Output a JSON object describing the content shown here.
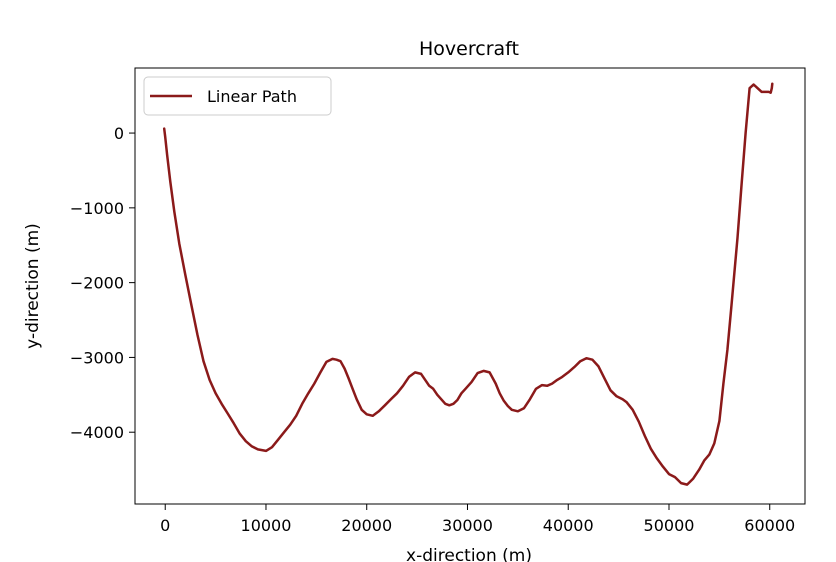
{
  "chart_data": {
    "type": "line",
    "title": "Hovercraft",
    "xlabel": "x-direction (m)",
    "ylabel": "y-direction (m)",
    "xlim": [
      -3000,
      63500
    ],
    "ylim": [
      -4960,
      870
    ],
    "grid": false,
    "legend_position": "upper-left",
    "xticks": [
      {
        "value": 0,
        "label": "0"
      },
      {
        "value": 10000,
        "label": "10000"
      },
      {
        "value": 20000,
        "label": "20000"
      },
      {
        "value": 30000,
        "label": "30000"
      },
      {
        "value": 40000,
        "label": "40000"
      },
      {
        "value": 50000,
        "label": "50000"
      },
      {
        "value": 60000,
        "label": "60000"
      }
    ],
    "yticks": [
      {
        "value": 0,
        "label": "0"
      },
      {
        "value": -1000,
        "label": "−1000"
      },
      {
        "value": -2000,
        "label": "−2000"
      },
      {
        "value": -3000,
        "label": "−3000"
      },
      {
        "value": -4000,
        "label": "−4000"
      }
    ],
    "series": [
      {
        "name": "Linear Path",
        "color": "#8b1a1a",
        "x": [
          -100,
          0,
          200,
          500,
          900,
          1400,
          2000,
          2600,
          3200,
          3800,
          4400,
          5000,
          5600,
          6200,
          6800,
          7400,
          8000,
          8600,
          9200,
          10000,
          10600,
          11200,
          11800,
          12400,
          13000,
          13600,
          14200,
          14800,
          15400,
          16000,
          16600,
          17000,
          17400,
          17800,
          18200,
          18600,
          19000,
          19500,
          20000,
          20600,
          21200,
          21800,
          22400,
          23000,
          23600,
          24200,
          24800,
          25400,
          25800,
          26200,
          26600,
          27000,
          27400,
          27800,
          28200,
          28600,
          29000,
          29400,
          29800,
          30400,
          31000,
          31600,
          32200,
          32800,
          33200,
          33600,
          34000,
          34400,
          35000,
          35600,
          36200,
          36800,
          37400,
          37900,
          38400,
          38900,
          39400,
          40000,
          40600,
          41200,
          41800,
          42400,
          43000,
          43600,
          44200,
          44800,
          45400,
          45800,
          46400,
          47000,
          47600,
          48200,
          48800,
          49400,
          50000,
          50600,
          51200,
          51800,
          52400,
          53000,
          53500,
          54000,
          54500,
          55000,
          55400,
          55800,
          56200,
          56800,
          57200,
          57600,
          58000,
          58400,
          58800,
          59200,
          59600,
          59900,
          60100,
          60200,
          60250
        ],
        "y": [
          60,
          -50,
          -300,
          -650,
          -1050,
          -1480,
          -1900,
          -2300,
          -2700,
          -3050,
          -3300,
          -3480,
          -3620,
          -3750,
          -3880,
          -4020,
          -4120,
          -4190,
          -4230,
          -4250,
          -4200,
          -4100,
          -4000,
          -3900,
          -3780,
          -3620,
          -3480,
          -3350,
          -3200,
          -3060,
          -3020,
          -3030,
          -3050,
          -3150,
          -3280,
          -3420,
          -3560,
          -3700,
          -3760,
          -3780,
          -3720,
          -3640,
          -3560,
          -3480,
          -3380,
          -3260,
          -3200,
          -3220,
          -3300,
          -3380,
          -3420,
          -3500,
          -3560,
          -3620,
          -3640,
          -3620,
          -3570,
          -3480,
          -3420,
          -3330,
          -3210,
          -3180,
          -3200,
          -3350,
          -3480,
          -3580,
          -3650,
          -3700,
          -3720,
          -3680,
          -3560,
          -3420,
          -3370,
          -3380,
          -3350,
          -3300,
          -3260,
          -3200,
          -3130,
          -3050,
          -3010,
          -3030,
          -3120,
          -3280,
          -3440,
          -3520,
          -3560,
          -3600,
          -3700,
          -3860,
          -4050,
          -4220,
          -4350,
          -4460,
          -4560,
          -4600,
          -4680,
          -4700,
          -4620,
          -4500,
          -4380,
          -4300,
          -4150,
          -3850,
          -3350,
          -2900,
          -2300,
          -1400,
          -700,
          0,
          600,
          650,
          600,
          550,
          550,
          550,
          540,
          600,
          660
        ]
      }
    ]
  }
}
